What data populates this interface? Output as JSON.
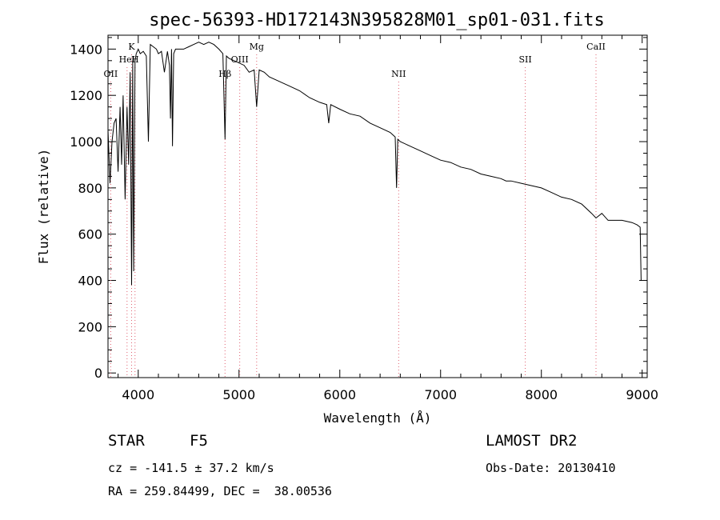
{
  "chart_data": {
    "type": "line",
    "title": "spec-56393-HD172143N395828M01_sp01-031.fits",
    "xlabel": "Wavelength (Å)",
    "ylabel": "Flux (relative)",
    "xlim": [
      3700,
      9050
    ],
    "ylim": [
      -20,
      1460
    ],
    "x_ticks": [
      "4000",
      "5000",
      "6000",
      "7000",
      "8000",
      "9000"
    ],
    "y_ticks": [
      "0",
      "200",
      "400",
      "600",
      "800",
      "1000",
      "1200",
      "1400"
    ],
    "series": [
      {
        "x": [
          3700,
          3720,
          3740,
          3760,
          3780,
          3800,
          3820,
          3835,
          3850,
          3870,
          3889,
          3905,
          3920,
          3934,
          3945,
          3955,
          3968,
          3980,
          4000,
          4020,
          4050,
          4080,
          4101,
          4120,
          4150,
          4180,
          4200,
          4230,
          4260,
          4290,
          4310,
          4320,
          4330,
          4340,
          4352,
          4370,
          4400,
          4450,
          4500,
          4550,
          4600,
          4650,
          4700,
          4750,
          4800,
          4840,
          4861,
          4875,
          4900,
          4950,
          5000,
          5050,
          5100,
          5150,
          5175,
          5200,
          5250,
          5300,
          5400,
          5500,
          5600,
          5700,
          5800,
          5870,
          5890,
          5910,
          6000,
          6100,
          6200,
          6300,
          6400,
          6500,
          6550,
          6563,
          6575,
          6600,
          6700,
          6800,
          6900,
          7000,
          7100,
          7200,
          7300,
          7400,
          7500,
          7600,
          7650,
          7700,
          7800,
          7900,
          8000,
          8100,
          8200,
          8300,
          8400,
          8498,
          8542,
          8600,
          8662,
          8700,
          8800,
          8900,
          8950,
          8980,
          8990
        ],
        "y": [
          1050,
          820,
          1000,
          1080,
          1100,
          870,
          1150,
          900,
          1200,
          750,
          1150,
          900,
          1300,
          380,
          1350,
          440,
          1350,
          1380,
          1400,
          1380,
          1390,
          1370,
          1000,
          1420,
          1410,
          1400,
          1380,
          1390,
          1300,
          1390,
          1330,
          1100,
          1400,
          980,
          1380,
          1400,
          1400,
          1400,
          1410,
          1420,
          1430,
          1420,
          1430,
          1420,
          1400,
          1380,
          1010,
          1370,
          1360,
          1350,
          1340,
          1330,
          1300,
          1310,
          1150,
          1310,
          1300,
          1280,
          1260,
          1240,
          1220,
          1190,
          1170,
          1160,
          1080,
          1160,
          1140,
          1120,
          1110,
          1080,
          1060,
          1040,
          1020,
          800,
          1010,
          1000,
          980,
          960,
          940,
          920,
          910,
          890,
          880,
          860,
          850,
          840,
          830,
          830,
          820,
          810,
          800,
          780,
          760,
          750,
          730,
          690,
          670,
          690,
          660,
          660,
          660,
          650,
          640,
          630,
          400
        ]
      }
    ],
    "line_markers": [
      {
        "label": "OII",
        "x": 3727,
        "tier": 3
      },
      {
        "label": "K",
        "x": 3934,
        "tier": 1
      },
      {
        "label": "H",
        "x": 3968,
        "tier": 2
      },
      {
        "label": "HeI",
        "x": 3889,
        "tier": 2
      },
      {
        "label": "Hβ",
        "x": 4861,
        "tier": 3
      },
      {
        "label": "OIII",
        "x": 5007,
        "tier": 2
      },
      {
        "label": "Mg",
        "x": 5175,
        "tier": 1
      },
      {
        "label": "NII",
        "x": 6584,
        "tier": 3
      },
      {
        "label": "SII",
        "x": 7840,
        "tier": 2
      },
      {
        "label": "CaII",
        "x": 8542,
        "tier": 1
      }
    ]
  },
  "info": {
    "object_class": "STAR",
    "subclass": "F5",
    "survey": "LAMOST DR2",
    "redshift": "cz = -141.5 ± 37.2 km/s",
    "obs_date": "Obs-Date: 20130410",
    "coords": "RA = 259.84499, DEC =  38.00536"
  }
}
